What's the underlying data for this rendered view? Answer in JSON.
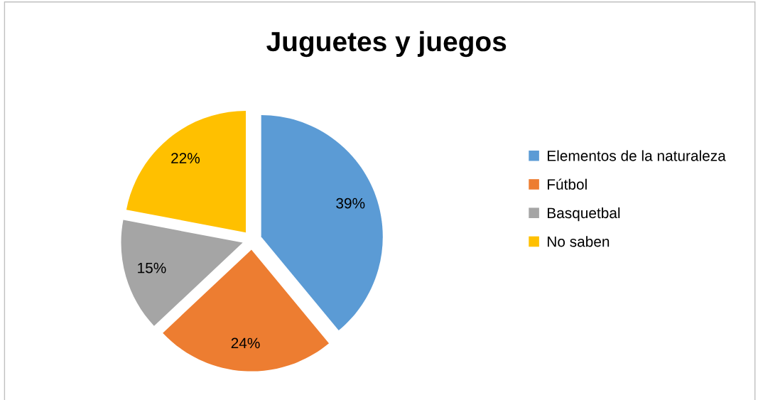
{
  "chart_data": {
    "type": "pie",
    "title": "Juguetes y juegos",
    "categories": [
      "Elementos de la naturaleza",
      "Fútbol",
      "Basquetbal",
      "No saben"
    ],
    "values": [
      39,
      24,
      15,
      22
    ],
    "value_labels": [
      "39%",
      "24%",
      "15%",
      "22%"
    ],
    "colors": [
      "#5b9bd5",
      "#ed7d31",
      "#a5a5a5",
      "#ffc000"
    ],
    "legend": "right"
  }
}
